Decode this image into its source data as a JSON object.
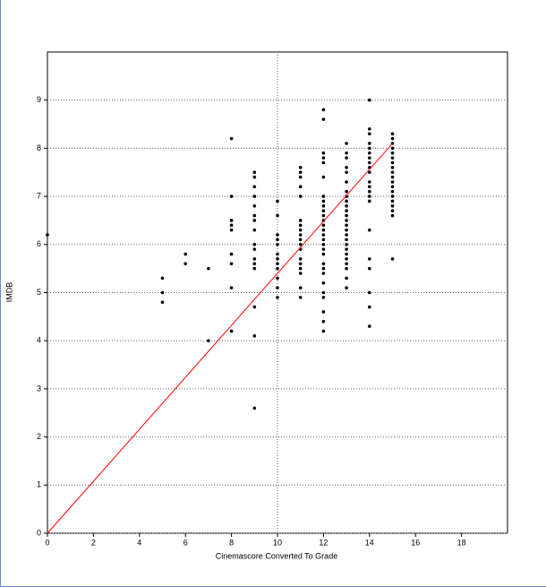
{
  "chart_data": {
    "type": "scatter",
    "x_label": "Cinemascore Converted To Grade",
    "y_label": "IMDB",
    "xlim": [
      0,
      20
    ],
    "ylim": [
      0,
      10
    ],
    "xticks": [
      0,
      2,
      4,
      6,
      8,
      10,
      12,
      14,
      16,
      18
    ],
    "yticks": [
      0,
      1,
      2,
      3,
      4,
      5,
      6,
      7,
      8,
      9
    ],
    "grid": "y",
    "x_reference_line": 10,
    "series": [
      {
        "color": "#000000",
        "x": [
          0,
          5,
          5,
          5,
          6,
          6,
          7,
          7,
          8,
          8,
          8,
          8,
          8,
          8,
          8,
          8,
          8,
          9,
          9,
          9,
          9,
          9,
          9,
          9,
          9,
          9,
          9,
          9,
          9,
          9,
          9,
          9,
          9,
          10,
          10,
          10,
          10,
          10,
          10,
          10,
          10,
          10,
          10,
          10,
          10,
          11,
          11,
          11,
          11,
          11,
          11,
          11,
          11,
          11,
          11,
          11,
          11,
          11,
          11,
          11,
          11,
          11,
          11,
          12,
          12,
          12,
          12,
          12,
          12,
          12,
          12,
          12,
          12,
          12,
          12,
          12,
          12,
          12,
          12,
          12,
          12,
          12,
          12,
          12,
          12,
          12,
          12,
          12,
          12,
          12,
          12,
          13,
          13,
          13,
          13,
          13,
          13,
          13,
          13,
          13,
          13,
          13,
          13,
          13,
          13,
          13,
          13,
          13,
          13,
          13,
          13,
          13,
          13,
          13,
          13,
          13,
          14,
          14,
          14,
          14,
          14,
          14,
          14,
          14,
          14,
          14,
          14,
          14,
          14,
          14,
          14,
          14,
          14,
          14,
          14,
          14,
          14,
          15,
          15,
          15,
          15,
          15,
          15,
          15,
          15,
          15,
          15,
          15,
          15,
          15,
          15,
          15,
          15,
          15,
          15,
          15
        ],
        "values": [
          6.2,
          5.3,
          5.0,
          4.8,
          5.8,
          5.6,
          5.5,
          4.0,
          8.2,
          7.0,
          6.5,
          6.4,
          6.3,
          5.8,
          5.6,
          5.1,
          4.2,
          7.5,
          7.4,
          7.2,
          7.0,
          6.8,
          6.6,
          6.5,
          6.3,
          6.0,
          5.9,
          5.7,
          5.6,
          5.5,
          4.7,
          4.1,
          2.6,
          6.9,
          6.6,
          6.2,
          6.1,
          6.0,
          5.8,
          5.7,
          5.6,
          5.5,
          5.3,
          5.1,
          4.9,
          7.6,
          7.5,
          7.4,
          7.2,
          7.0,
          6.5,
          6.4,
          6.3,
          6.2,
          6.1,
          6.0,
          5.9,
          5.7,
          5.6,
          5.5,
          5.4,
          5.1,
          4.9,
          8.8,
          8.6,
          7.9,
          7.8,
          7.7,
          7.4,
          7.0,
          6.9,
          6.8,
          6.7,
          6.6,
          6.5,
          6.4,
          6.3,
          6.2,
          6.1,
          6.0,
          5.9,
          5.8,
          5.6,
          5.5,
          5.4,
          5.2,
          5.0,
          4.9,
          4.6,
          4.4,
          4.2,
          8.1,
          7.9,
          7.8,
          7.6,
          7.5,
          7.3,
          7.1,
          7.0,
          6.9,
          6.8,
          6.7,
          6.6,
          6.5,
          6.4,
          6.3,
          6.2,
          6.1,
          6.0,
          5.9,
          5.8,
          5.7,
          5.6,
          5.5,
          5.3,
          5.1,
          9.0,
          8.4,
          8.3,
          8.1,
          8.0,
          7.9,
          7.8,
          7.7,
          7.6,
          7.5,
          7.3,
          7.2,
          7.1,
          7.0,
          6.9,
          6.3,
          5.7,
          5.5,
          5.0,
          4.7,
          4.3,
          8.3,
          8.2,
          8.1,
          8.0,
          7.9,
          7.8,
          7.7,
          7.6,
          7.5,
          7.4,
          7.3,
          7.2,
          7.1,
          7.0,
          6.9,
          6.8,
          6.7,
          6.6,
          5.7
        ]
      },
      {
        "type": "line",
        "color": "#ff0000",
        "x": [
          0,
          15
        ],
        "values": [
          0,
          8.1
        ]
      }
    ]
  }
}
